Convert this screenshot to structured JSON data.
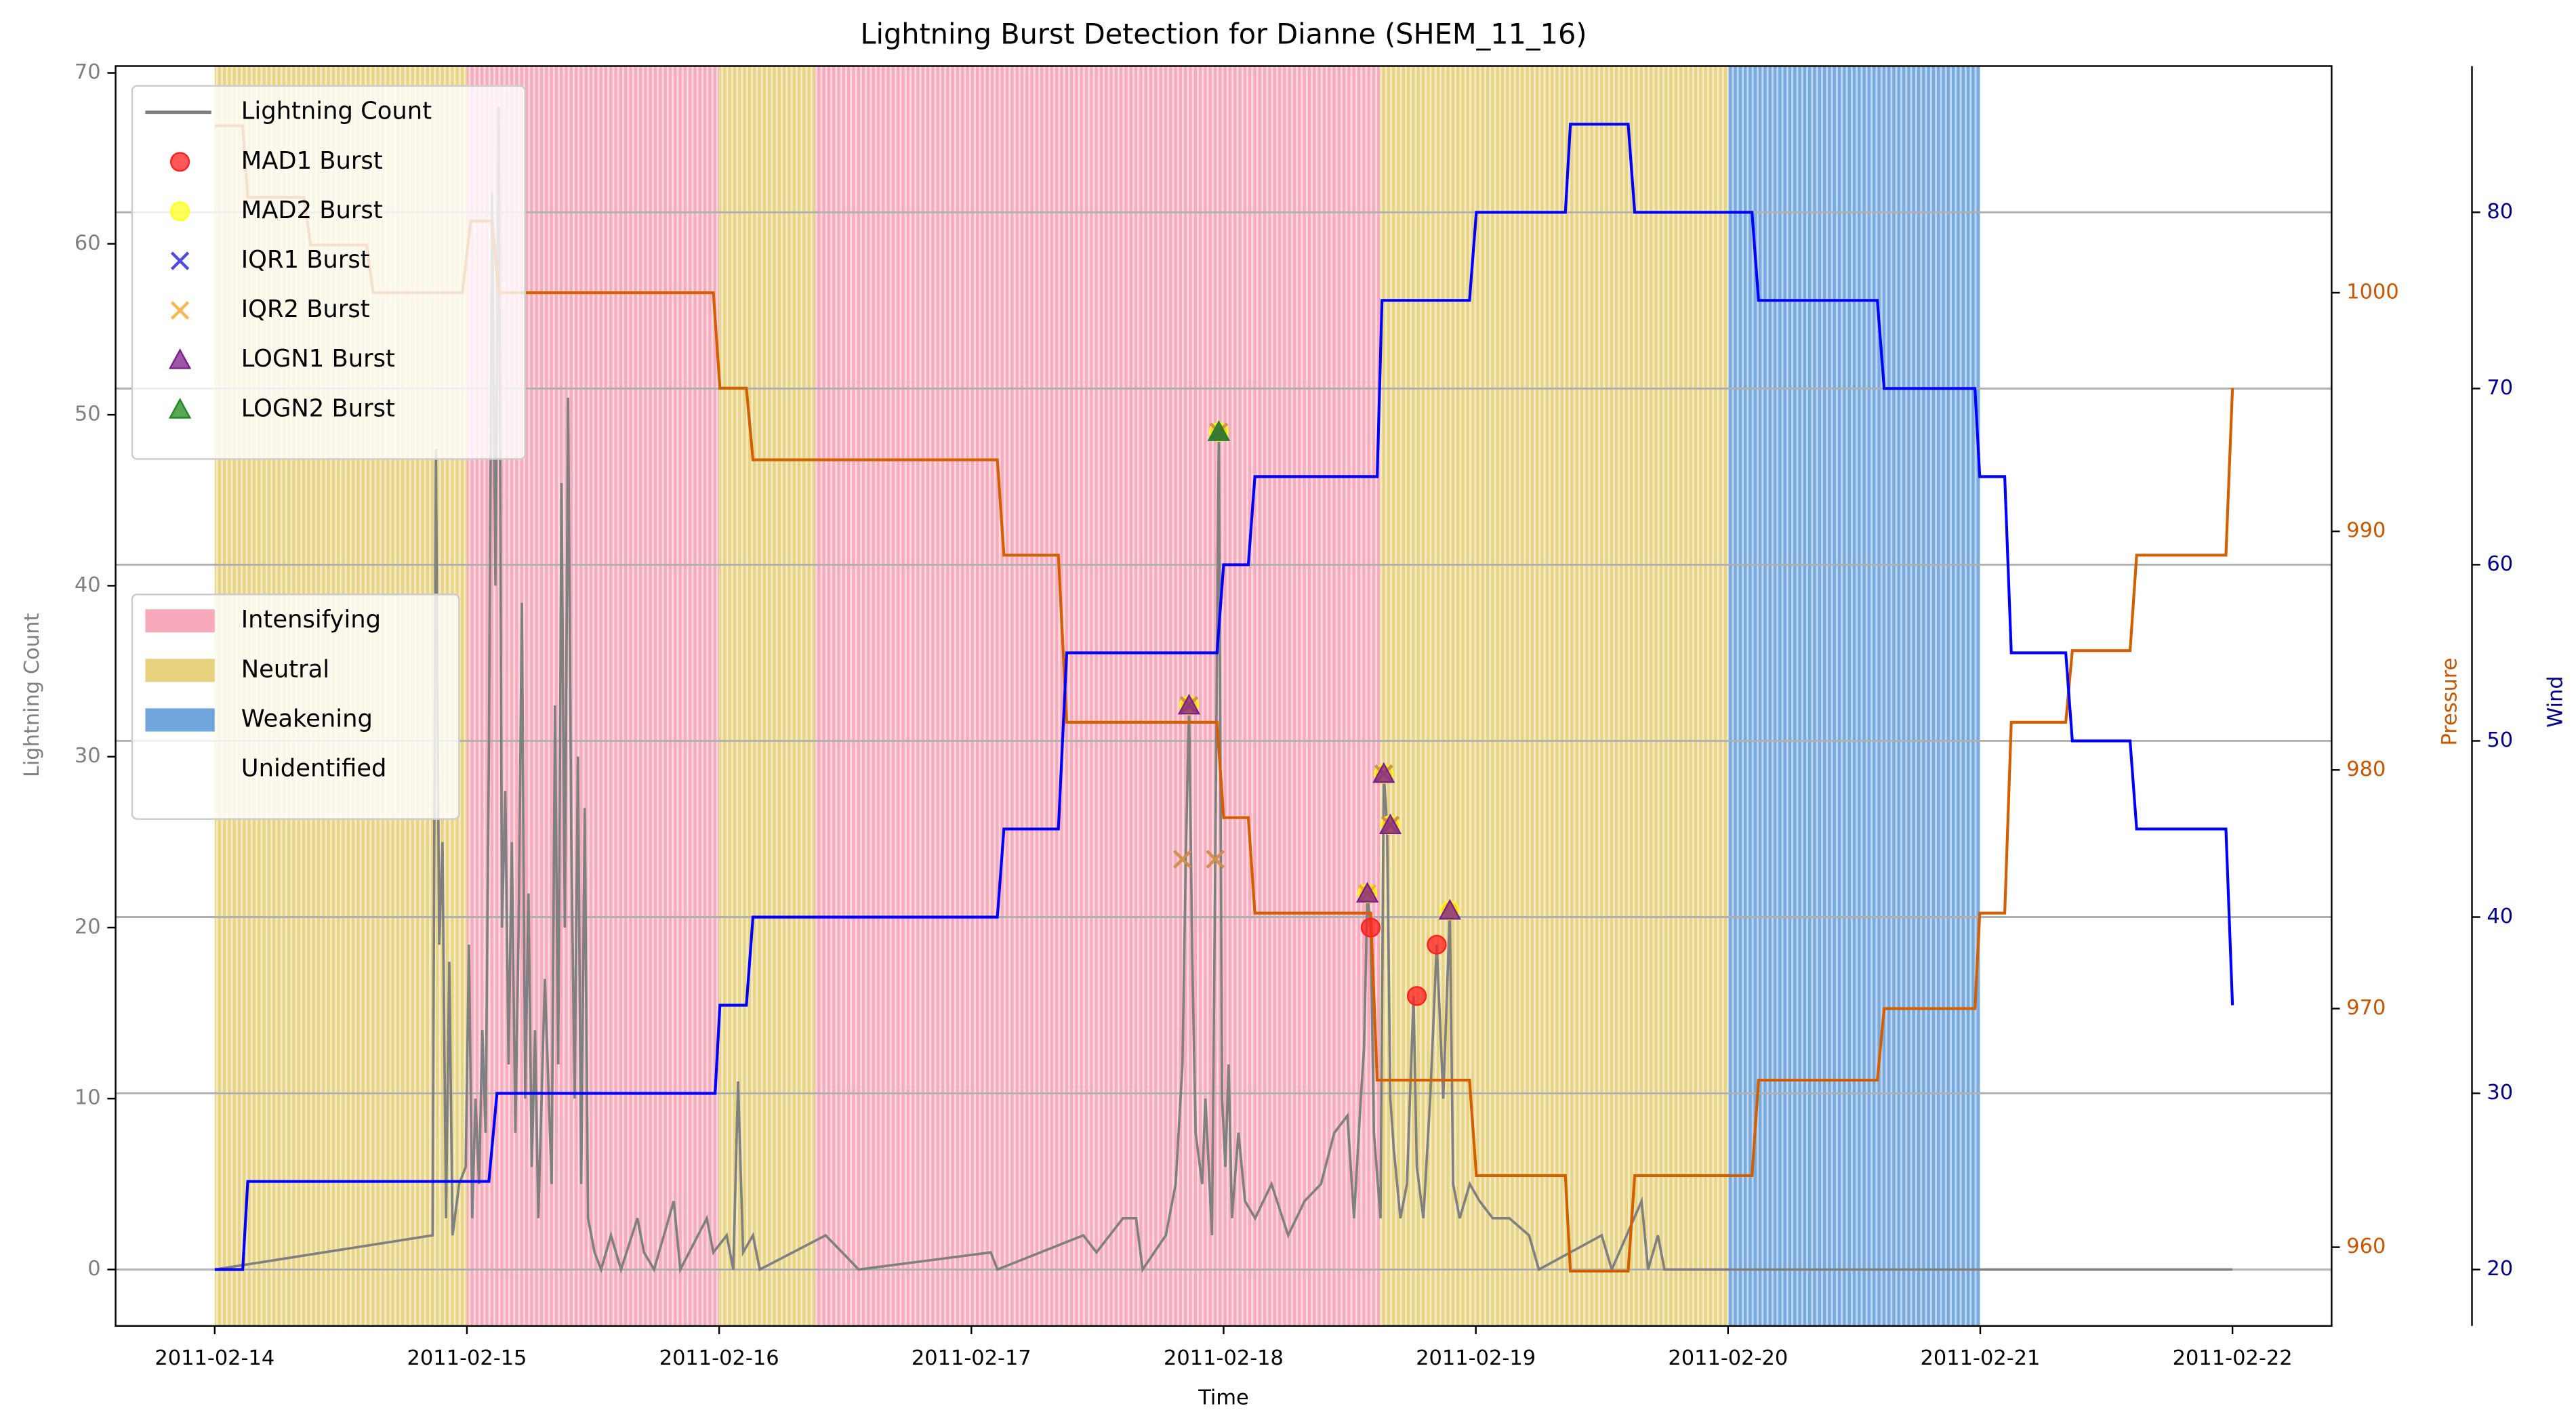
{
  "chart_data": {
    "type": "line",
    "title": "Lightning Burst Detection for Dianne (SHEM_11_16)",
    "x_label": "Time",
    "y_label": "Lightning Count",
    "y2_label": "Pressure",
    "y3_label": "Wind",
    "y_color": "#808080",
    "y2_color": "#cc5500",
    "y3_color": "#00008b",
    "xlim": [
      -0.393,
      8.393
    ],
    "xticks": [
      {
        "value": 0,
        "label": "2011-02-14"
      },
      {
        "value": 1,
        "label": "2011-02-15"
      },
      {
        "value": 2,
        "label": "2011-02-16"
      },
      {
        "value": 3,
        "label": "2011-02-17"
      },
      {
        "value": 4,
        "label": "2011-02-18"
      },
      {
        "value": 5,
        "label": "2011-02-19"
      },
      {
        "value": 6,
        "label": "2011-02-20"
      },
      {
        "value": 7,
        "label": "2011-02-21"
      },
      {
        "value": 8,
        "label": "2011-02-22"
      }
    ],
    "ylim": [
      -3.3,
      70.4
    ],
    "yticks": [
      0,
      10,
      20,
      30,
      40,
      50,
      60,
      70
    ],
    "y2lim": [
      956.7,
      1009.5
    ],
    "y2ticks": [
      960,
      970,
      980,
      990,
      1000
    ],
    "y3lim": [
      16.8,
      88.3
    ],
    "y3ticks": [
      20,
      30,
      40,
      50,
      60,
      70,
      80
    ],
    "grid_axis": "y3",
    "legend_loc": "upper left",
    "phase_legend_loc": "center left",
    "phases": [
      {
        "name": "Intensifying",
        "color": "#f7a8ba"
      },
      {
        "name": "Neutral",
        "color": "#e6d27e"
      },
      {
        "name": "Weakening",
        "color": "#6fa5dc"
      },
      {
        "name": "Unidentified",
        "color": "#ffffff"
      }
    ],
    "spans": [
      {
        "phase": "Neutral",
        "start": 0,
        "end": 1
      },
      {
        "phase": "Intensifying",
        "start": 1,
        "end": 2
      },
      {
        "phase": "Neutral",
        "start": 2,
        "end": 2.38
      },
      {
        "phase": "Intensifying",
        "start": 2.38,
        "end": 4.62
      },
      {
        "phase": "Neutral",
        "start": 4.62,
        "end": 6
      },
      {
        "phase": "Weakening",
        "start": 6,
        "end": 7
      }
    ],
    "series": [
      {
        "name": "Lightning Count",
        "kind": "line",
        "color": "#808080",
        "axis": "y",
        "x": [
          0,
          0.864,
          0.877,
          0.89,
          0.903,
          0.917,
          0.93,
          0.943,
          0.969,
          0.995,
          1.008,
          1.021,
          1.034,
          1.048,
          1.061,
          1.074,
          1.087,
          1.1,
          1.113,
          1.126,
          1.139,
          1.152,
          1.165,
          1.178,
          1.192,
          1.205,
          1.218,
          1.231,
          1.244,
          1.257,
          1.27,
          1.283,
          1.309,
          1.336,
          1.349,
          1.362,
          1.375,
          1.388,
          1.401,
          1.414,
          1.427,
          1.44,
          1.453,
          1.467,
          1.48,
          1.506,
          1.532,
          1.571,
          1.611,
          1.676,
          1.702,
          1.742,
          1.82,
          1.846,
          1.951,
          1.977,
          2.03,
          2.056,
          2.075,
          2.095,
          2.134,
          2.161,
          2.422,
          2.488,
          2.553,
          3.077,
          3.103,
          3.444,
          3.496,
          3.601,
          3.653,
          3.679,
          3.771,
          3.81,
          3.837,
          3.85,
          3.863,
          3.876,
          3.889,
          3.915,
          3.928,
          3.954,
          3.967,
          3.981,
          3.994,
          4.007,
          4.02,
          4.033,
          4.059,
          4.085,
          4.125,
          4.19,
          4.256,
          4.321,
          4.386,
          4.439,
          4.491,
          4.517,
          4.544,
          4.557,
          4.57,
          4.583,
          4.596,
          4.622,
          4.635,
          4.648,
          4.661,
          4.675,
          4.701,
          4.727,
          4.753,
          4.766,
          4.792,
          4.819,
          4.845,
          4.871,
          4.897,
          4.91,
          4.936,
          4.976,
          5.015,
          5.067,
          5.133,
          5.211,
          5.25,
          5.499,
          5.539,
          5.657,
          5.683,
          5.722,
          5.748,
          8.0
        ],
        "values": [
          0,
          2,
          48,
          19,
          25,
          3,
          18,
          2,
          5,
          6,
          19,
          3,
          10,
          5,
          14,
          8,
          30,
          63,
          40,
          68,
          20,
          28,
          12,
          25,
          8,
          20,
          39,
          10,
          22,
          6,
          14,
          3,
          17,
          5,
          33,
          12,
          46,
          20,
          51,
          25,
          10,
          30,
          5,
          27,
          3,
          1,
          0,
          2,
          0,
          3,
          1,
          0,
          4,
          0,
          3,
          1,
          2,
          0,
          11,
          1,
          2,
          0,
          2,
          1,
          0,
          1,
          0,
          2,
          1,
          3,
          3,
          0,
          2,
          5,
          12,
          24,
          33,
          18,
          8,
          5,
          10,
          2,
          24,
          49,
          10,
          6,
          12,
          3,
          8,
          4,
          3,
          5,
          2,
          4,
          5,
          8,
          9,
          3,
          10,
          13,
          22,
          20,
          8,
          3,
          29,
          26,
          10,
          7,
          3,
          5,
          16,
          6,
          3,
          10,
          19,
          10,
          21,
          5,
          3,
          5,
          4,
          3,
          3,
          2,
          0,
          2,
          0,
          4,
          0,
          2,
          0,
          0
        ]
      },
      {
        "name": "MAD1 Burst",
        "kind": "scatter",
        "marker": "o",
        "color": "#ff2020",
        "axis": "y",
        "x": [
          3.863,
          3.981,
          4.57,
          4.583,
          4.635,
          4.661,
          4.766,
          4.845,
          4.897
        ],
        "values": [
          33,
          49,
          22,
          20,
          29,
          26,
          16,
          19,
          21
        ]
      },
      {
        "name": "MAD2 Burst",
        "kind": "scatter",
        "marker": "o",
        "color": "#ffff20",
        "axis": "y",
        "x": [
          3.863,
          3.981,
          4.57,
          4.635,
          4.661,
          4.897
        ],
        "values": [
          33,
          49,
          22,
          29,
          26,
          21
        ]
      },
      {
        "name": "IQR1 Burst",
        "kind": "scatter",
        "marker": "x",
        "color": "#2020e0",
        "axis": "y",
        "x": [
          3.837,
          3.863,
          3.967,
          3.981,
          4.635,
          4.661
        ],
        "values": [
          24,
          33,
          24,
          49,
          29,
          26
        ]
      },
      {
        "name": "IQR2 Burst",
        "kind": "scatter",
        "marker": "x",
        "color": "#f5a623",
        "axis": "y",
        "x": [
          3.837,
          3.863,
          3.967,
          3.981,
          4.57,
          4.635,
          4.661
        ],
        "values": [
          24,
          33,
          24,
          49,
          22,
          29,
          26
        ]
      },
      {
        "name": "LOGN1 Burst",
        "kind": "scatter",
        "marker": "^",
        "color": "#7b1f8a",
        "axis": "y",
        "x": [
          3.863,
          3.981,
          4.57,
          4.635,
          4.661,
          4.897
        ],
        "values": [
          33,
          49,
          22,
          29,
          26,
          21
        ]
      },
      {
        "name": "LOGN2 Burst",
        "kind": "scatter",
        "marker": "^",
        "color": "#1f8a1f",
        "axis": "y",
        "x": [
          3.981
        ],
        "values": [
          49
        ]
      },
      {
        "kind": "line",
        "color": "#d35f00",
        "axis": "y2",
        "x": [
          0,
          0.111,
          0.131,
          0.354,
          0.38,
          0.602,
          0.628,
          0.982,
          1.015,
          1.1,
          1.126,
          1.977,
          2.003,
          2.108,
          2.134,
          3.103,
          3.129,
          3.345,
          3.378,
          3.974,
          4.0,
          4.098,
          4.124,
          4.583,
          4.609,
          4.975,
          5.002,
          5.355,
          5.375,
          5.604,
          5.63,
          6.095,
          6.121,
          6.592,
          6.619,
          6.979,
          6.998,
          7.097,
          7.123,
          7.339,
          7.365,
          7.594,
          7.62,
          7.974,
          8.0
        ],
        "values": [
          1007,
          1007,
          1004,
          1004,
          1002,
          1002,
          1000,
          1000,
          1003,
          1003,
          1000,
          1000,
          996,
          996,
          993,
          993,
          989,
          989,
          982,
          982,
          978,
          978,
          974,
          974,
          967,
          967,
          963,
          963,
          959,
          959,
          963,
          963,
          967,
          967,
          970,
          970,
          974,
          974,
          982,
          982,
          985,
          985,
          989,
          989,
          996
        ]
      },
      {
        "kind": "line",
        "color": "#0000ff",
        "axis": "y3",
        "x": [
          0,
          0.111,
          0.131,
          1.087,
          1.119,
          1.984,
          2.003,
          2.108,
          2.134,
          3.103,
          3.129,
          3.345,
          3.378,
          3.974,
          4.0,
          4.098,
          4.124,
          4.609,
          4.628,
          4.975,
          5.002,
          5.355,
          5.375,
          5.604,
          5.63,
          6.095,
          6.121,
          6.592,
          6.619,
          6.979,
          6.998,
          7.097,
          7.123,
          7.339,
          7.365,
          7.594,
          7.62,
          7.974,
          8.0
        ],
        "values": [
          20,
          20,
          25,
          25,
          30,
          30,
          35,
          35,
          40,
          40,
          45,
          45,
          55,
          55,
          60,
          60,
          65,
          65,
          75,
          75,
          80,
          80,
          85,
          85,
          80,
          80,
          75,
          75,
          70,
          70,
          65,
          65,
          55,
          55,
          50,
          50,
          45,
          45,
          35
        ]
      }
    ]
  }
}
